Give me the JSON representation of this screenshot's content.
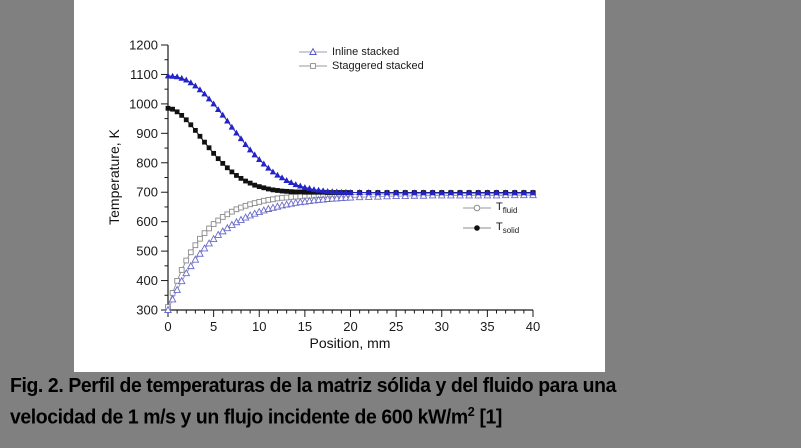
{
  "colors": {
    "background": "#808080",
    "panel": "#ffffff",
    "axis": "#1a1a1a",
    "accent_blue": "#2323c8"
  },
  "caption": {
    "line1": "Fig. 2. Perfil de temperaturas de la matriz sólida y del fluido para una",
    "line2_prefix": "velocidad de 1 m/s y un flujo incidente de 600 kW/m",
    "line2_sup": "2",
    "line2_suffix": " [1]"
  },
  "chart_data": {
    "type": "line",
    "title": "",
    "xlabel": "Position, mm",
    "ylabel": "Temperature, K",
    "xlim": [
      0,
      40
    ],
    "ylim": [
      300,
      1200
    ],
    "xticks": [
      0,
      5,
      10,
      15,
      20,
      25,
      30,
      35,
      40
    ],
    "yticks": [
      300,
      400,
      500,
      600,
      700,
      800,
      900,
      1000,
      1100,
      1200
    ],
    "x_minor_step": 1,
    "y_minor_step": 50,
    "grid": false,
    "legend_top": {
      "items": [
        {
          "label": "Inline stacked",
          "marker": "triangle-open",
          "color": "#5353c8",
          "line_color": "#9a9ab4"
        },
        {
          "label": "Staggered stacked",
          "marker": "square-open",
          "color": "#8a8a8a",
          "line_color": "#9a9a9a"
        }
      ]
    },
    "legend_mid": {
      "items": [
        {
          "label_main": "T",
          "label_sub": "fluid",
          "marker": "circle-open",
          "color": "#8a8a8a",
          "line_color": "#9a9a9a"
        },
        {
          "label_main": "T",
          "label_sub": "solid",
          "marker": "circle-filled",
          "color": "#111111",
          "line_color": "#8c8c8c"
        }
      ]
    },
    "x": [
      0,
      0.5,
      1,
      1.5,
      2,
      2.5,
      3,
      3.5,
      4,
      4.5,
      5,
      5.5,
      6,
      6.5,
      7,
      7.5,
      8,
      8.5,
      9,
      9.5,
      10,
      10.5,
      11,
      11.5,
      12,
      12.5,
      13,
      13.5,
      14,
      14.5,
      15,
      15.5,
      16,
      16.5,
      17,
      17.5,
      18,
      18.5,
      19,
      19.5,
      20,
      21,
      22,
      23,
      24,
      25,
      26,
      27,
      28,
      29,
      30,
      31,
      32,
      33,
      34,
      35,
      36,
      37,
      38,
      39,
      40
    ],
    "series": [
      {
        "name": "Staggered stacked - T_fluid",
        "marker": "square-open",
        "color": "#8a8a8a",
        "line_color": "#999999",
        "values": [
          310,
          358,
          399,
          436,
          468,
          496,
          520,
          542,
          561,
          577,
          592,
          604,
          616,
          625,
          634,
          642,
          648,
          654,
          659,
          663,
          667,
          671,
          674,
          676,
          679,
          681,
          682,
          684,
          685,
          686,
          688,
          688,
          689,
          690,
          691,
          691,
          692,
          692,
          692,
          693,
          693,
          693,
          694,
          694,
          694,
          694,
          695,
          695,
          695,
          695,
          695,
          695,
          695,
          695,
          695,
          695,
          695,
          695,
          695,
          695,
          695
        ]
      },
      {
        "name": "Inline stacked - T_fluid",
        "marker": "triangle-open",
        "color": "#6b6bcc",
        "line_color": "#9a9ad4",
        "values": [
          300,
          336,
          368,
          398,
          425,
          449,
          471,
          491,
          509,
          526,
          541,
          555,
          567,
          578,
          589,
          598,
          606,
          614,
          621,
          627,
          633,
          638,
          643,
          647,
          651,
          655,
          658,
          661,
          664,
          666,
          668,
          670,
          672,
          674,
          675,
          677,
          678,
          679,
          680,
          681,
          682,
          683,
          684,
          685,
          686,
          687,
          687,
          688,
          688,
          689,
          689,
          689,
          689,
          689,
          689,
          689,
          689,
          690,
          690,
          690,
          690
        ]
      },
      {
        "name": "Staggered stacked - T_solid",
        "marker": "square-filled",
        "color": "#111111",
        "line_color": "#111111",
        "values": [
          985,
          982,
          973,
          961,
          946,
          929,
          910,
          890,
          870,
          851,
          832,
          814,
          798,
          783,
          769,
          757,
          747,
          738,
          731,
          724,
          719,
          715,
          711,
          708,
          706,
          704,
          703,
          702,
          701,
          701,
          700,
          700,
          700,
          700,
          700,
          699,
          699,
          699,
          699,
          699,
          699,
          699,
          699,
          699,
          699,
          699,
          699,
          699,
          699,
          699,
          699,
          699,
          699,
          699,
          699,
          699,
          699,
          699,
          699,
          699,
          699
        ]
      },
      {
        "name": "Inline stacked - T_solid",
        "marker": "triangle-filled",
        "color": "#2323c8",
        "line_color": "#2323c8",
        "values": [
          1095,
          1094,
          1092,
          1087,
          1081,
          1072,
          1061,
          1048,
          1034,
          1017,
          1000,
          981,
          962,
          942,
          921,
          901,
          882,
          862,
          844,
          827,
          811,
          796,
          782,
          769,
          758,
          749,
          740,
          733,
          726,
          721,
          716,
          713,
          709,
          707,
          705,
          703,
          702,
          701,
          700,
          700,
          699,
          699,
          699,
          698,
          698,
          698,
          698,
          698,
          698,
          698,
          698,
          698,
          698,
          698,
          698,
          698,
          698,
          698,
          698,
          698,
          698
        ]
      }
    ]
  }
}
